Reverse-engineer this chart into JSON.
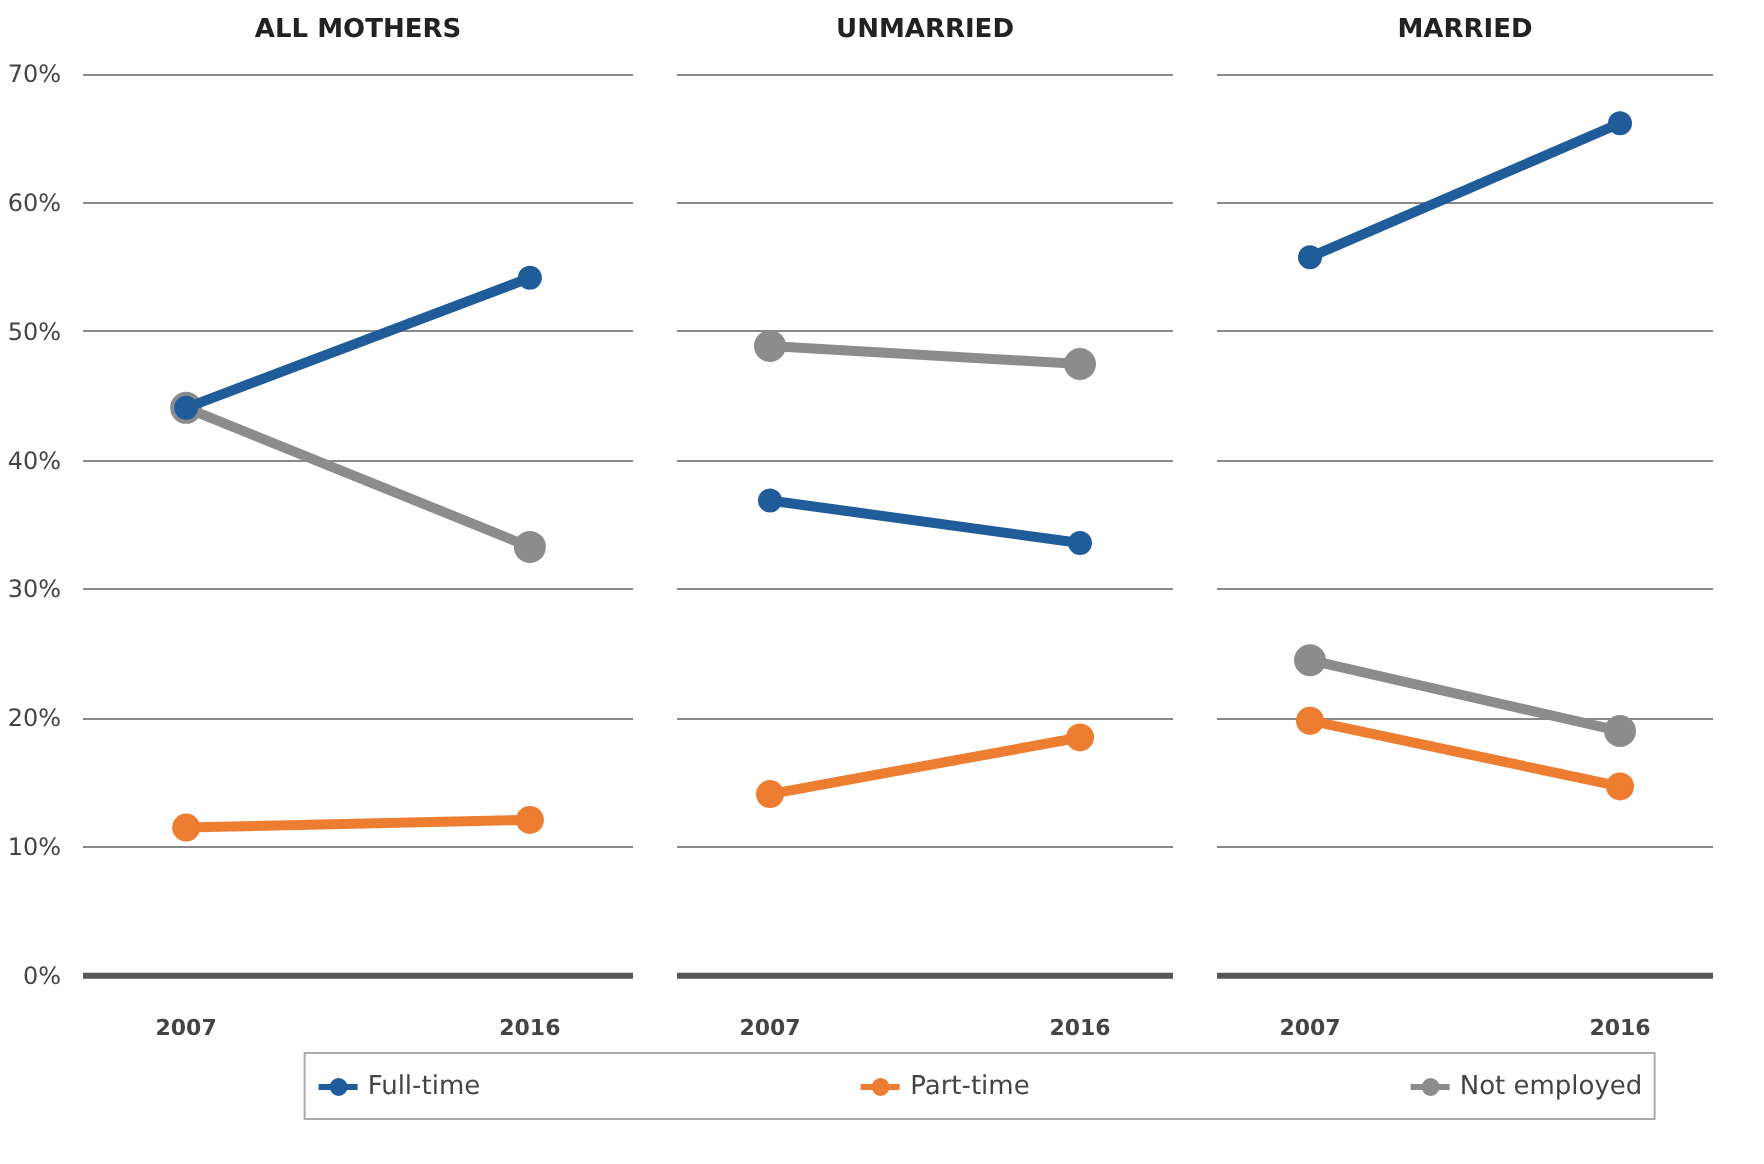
{
  "chart_data": [
    {
      "type": "line",
      "title": "ALL MOTHERS",
      "categories": [
        "2007",
        "2016"
      ],
      "ylim": [
        0,
        70
      ],
      "yticks": [
        {
          "value": 0,
          "label": "0%"
        },
        {
          "value": 10,
          "label": "10%"
        },
        {
          "value": 20,
          "label": "20%"
        },
        {
          "value": 30,
          "label": "30%"
        },
        {
          "value": 40,
          "label": "40%"
        },
        {
          "value": 50,
          "label": "50%"
        },
        {
          "value": 60,
          "label": "60%"
        },
        {
          "value": 70,
          "label": "70%"
        }
      ],
      "grid": "y",
      "marker": "circle",
      "legend": "bottom",
      "series": [
        {
          "name": "Full-time",
          "color": "#1f5c99",
          "values": [
            44.1,
            54.2
          ]
        },
        {
          "name": "Part-time",
          "color": "#ed7d31",
          "values": [
            11.5,
            12.1
          ]
        },
        {
          "name": "Not employed",
          "color": "#8c8c8c",
          "values": [
            44.1,
            33.3
          ]
        }
      ]
    },
    {
      "type": "line",
      "title": "UNMARRIED",
      "categories": [
        "2007",
        "2016"
      ],
      "ylim": [
        0,
        70
      ],
      "yticks": [
        0,
        10,
        20,
        30,
        40,
        50,
        60,
        70
      ],
      "grid": "y",
      "marker": "circle",
      "tick_labels": "x",
      "series": [
        {
          "color": "#1f5c99",
          "values": [
            36.9,
            33.6
          ]
        },
        {
          "color": "#ed7d31",
          "values": [
            14.1,
            18.5
          ]
        },
        {
          "color": "#8c8c8c",
          "values": [
            48.9,
            47.5
          ]
        }
      ]
    },
    {
      "type": "line",
      "title": "MARRIED",
      "categories": [
        "2007",
        "2016"
      ],
      "ylim": [
        0,
        70
      ],
      "yticks": [
        0,
        10,
        20,
        30,
        40,
        50,
        60,
        70
      ],
      "grid": "y",
      "marker": "circle",
      "tick_labels": "x",
      "series": [
        {
          "color": "#1f5c99",
          "values": [
            55.8,
            66.2
          ]
        },
        {
          "color": "#ed7d31",
          "values": [
            19.8,
            14.7
          ]
        },
        {
          "color": "#8c8c8c",
          "values": [
            24.5,
            19.0
          ]
        }
      ]
    }
  ]
}
